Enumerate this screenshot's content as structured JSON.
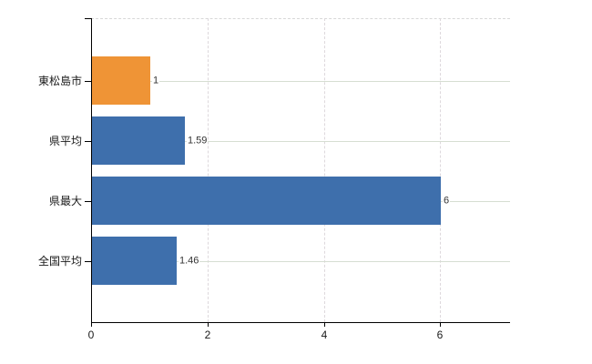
{
  "chart_data": {
    "type": "bar",
    "orientation": "horizontal",
    "title": "",
    "xlabel": "",
    "ylabel": "",
    "categories": [
      "東松島市",
      "県平均",
      "県最大",
      "全国平均"
    ],
    "values": [
      1,
      1.59,
      6,
      1.46
    ],
    "value_labels": [
      "1",
      "1.59",
      "6",
      "1.46"
    ],
    "bar_colors": [
      "#EF9436",
      "#3E6FAC",
      "#3E6FAC",
      "#3E6FAC"
    ],
    "highlighted_category": "東松島市",
    "x_ticks": [
      0,
      2,
      4,
      6
    ],
    "x_tick_labels": [
      "0",
      "2",
      "4",
      "6"
    ],
    "xlim": [
      0,
      7.2
    ],
    "grid": true,
    "legend": "none",
    "colors": {
      "accent_orange": "#EF9436",
      "series_blue": "#3E6FAC",
      "horizontal_grid": "#d6ded2",
      "vertical_grid": "#ddd8dc",
      "top_border": "#d8d8d8",
      "axis": "#000000",
      "label_text": "#1a1a1a",
      "value_text": "#333333"
    }
  }
}
